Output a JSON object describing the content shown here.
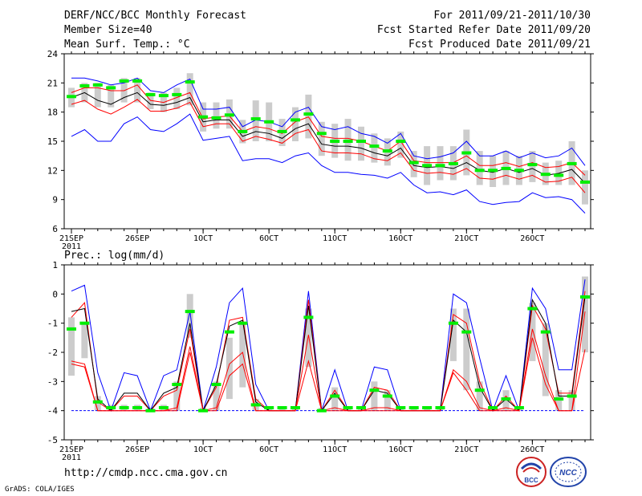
{
  "header": {
    "title": "DERF/NCC/BCC Monthly Forecast",
    "member_size": "Member Size=40",
    "variable": "Mean Surf. Temp.: °C",
    "forecast_period": "For 2011/09/21-2011/10/30",
    "started_refer": "Fcst Started Refer Date 2011/09/20",
    "produced": "Fcst Produced Date 2011/09/21"
  },
  "footer": {
    "url": "http://cmdp.ncc.cma.gov.cn",
    "grads": "GrADS: COLA/IGES",
    "logo1_text": "BCC",
    "logo2_text": "NCC"
  },
  "colors": {
    "box": "#cccccc",
    "median": "#00ee00",
    "mean": "#000000",
    "ci_inner": "#ff0000",
    "ci_outer": "#0000ff",
    "axis": "#000000"
  },
  "chart_data": [
    {
      "type": "box-line",
      "title": "Mean Surf. Temp.: °C",
      "ylim": [
        6,
        24
      ],
      "yticks": [
        6,
        9,
        12,
        15,
        18,
        21,
        24
      ],
      "xticks": [
        {
          "day": 0,
          "label": "21SEP",
          "sublabel": "2011"
        },
        {
          "day": 5,
          "label": "26SEP"
        },
        {
          "day": 10,
          "label": "1OCT"
        },
        {
          "day": 15,
          "label": "6OCT"
        },
        {
          "day": 20,
          "label": "11OCT"
        },
        {
          "day": 25,
          "label": "16OCT"
        },
        {
          "day": 30,
          "label": "21OCT"
        },
        {
          "day": 35,
          "label": "26OCT"
        }
      ],
      "days": 40,
      "series": [
        {
          "name": "upper-blue",
          "values": [
            21.5,
            21.5,
            21.2,
            20.8,
            21.0,
            21.5,
            20.2,
            20.0,
            20.8,
            21.4,
            18.3,
            18.3,
            18.5,
            16.5,
            17.2,
            17.0,
            16.5,
            18.0,
            18.5,
            16.5,
            16.2,
            16.5,
            15.8,
            15.5,
            14.8,
            15.8,
            13.5,
            13.2,
            13.4,
            13.8,
            15.0,
            13.5,
            13.5,
            14.0,
            13.3,
            13.8,
            13.3,
            13.5,
            14.3,
            12.5
          ]
        },
        {
          "name": "upper-red",
          "values": [
            20.0,
            20.5,
            20.5,
            20.2,
            20.2,
            20.8,
            19.2,
            19.0,
            19.5,
            20.0,
            17.3,
            17.5,
            17.6,
            16.0,
            16.5,
            16.3,
            15.8,
            17.0,
            17.5,
            15.5,
            15.3,
            15.3,
            15.0,
            14.5,
            14.0,
            15.0,
            13.0,
            12.8,
            12.8,
            12.8,
            13.5,
            12.5,
            12.5,
            12.8,
            12.4,
            12.8,
            12.3,
            12.4,
            12.8,
            11.5
          ]
        },
        {
          "name": "mean",
          "values": [
            19.5,
            20.0,
            19.2,
            18.8,
            19.5,
            20.0,
            18.8,
            18.7,
            19.0,
            19.5,
            17.0,
            17.2,
            17.2,
            15.5,
            16.0,
            15.8,
            15.3,
            16.3,
            16.8,
            14.7,
            14.5,
            14.5,
            14.3,
            13.8,
            13.5,
            14.3,
            12.5,
            12.3,
            12.4,
            12.2,
            12.8,
            12.0,
            11.8,
            12.2,
            11.8,
            12.2,
            11.5,
            11.7,
            12.1,
            10.7
          ]
        },
        {
          "name": "lower-red",
          "values": [
            18.8,
            19.2,
            18.3,
            17.8,
            18.5,
            19.3,
            18.1,
            18.1,
            18.4,
            19.0,
            16.5,
            16.8,
            16.8,
            15.0,
            15.5,
            15.2,
            14.8,
            15.8,
            16.2,
            14.0,
            13.8,
            13.8,
            13.7,
            13.2,
            13.0,
            13.8,
            12.0,
            11.7,
            11.8,
            11.6,
            12.2,
            11.2,
            11.1,
            11.5,
            11.1,
            11.5,
            10.8,
            10.9,
            11.3,
            9.7
          ]
        },
        {
          "name": "lower-blue",
          "values": [
            15.5,
            16.2,
            15.0,
            15.0,
            16.8,
            17.5,
            16.2,
            16.0,
            16.8,
            17.8,
            15.1,
            15.3,
            15.5,
            13.0,
            13.2,
            13.2,
            12.8,
            13.5,
            13.8,
            12.5,
            11.8,
            11.8,
            11.6,
            11.5,
            11.2,
            11.8,
            10.5,
            9.7,
            9.8,
            9.5,
            10.0,
            8.8,
            8.5,
            8.7,
            8.8,
            9.7,
            9.2,
            9.3,
            9.0,
            7.6
          ]
        }
      ],
      "boxes": [
        {
          "low": 18.5,
          "high": 20.5,
          "median": 19.6
        },
        {
          "low": 19.0,
          "high": 21.0,
          "median": 20.7
        },
        {
          "low": 18.5,
          "high": 21.0,
          "median": 20.8
        },
        {
          "low": 18.5,
          "high": 20.8,
          "median": 20.5
        },
        {
          "low": 19.0,
          "high": 21.5,
          "median": 21.2
        },
        {
          "low": 19.0,
          "high": 21.5,
          "median": 21.2
        },
        {
          "low": 18.3,
          "high": 20.0,
          "median": 19.8
        },
        {
          "low": 18.0,
          "high": 20.0,
          "median": 19.7
        },
        {
          "low": 18.3,
          "high": 20.5,
          "median": 19.8
        },
        {
          "low": 18.7,
          "high": 22.0,
          "median": 21.1
        },
        {
          "low": 16.0,
          "high": 19.0,
          "median": 17.5
        },
        {
          "low": 16.3,
          "high": 19.0,
          "median": 17.4
        },
        {
          "low": 16.3,
          "high": 19.3,
          "median": 17.7
        },
        {
          "low": 14.8,
          "high": 17.2,
          "median": 16.0
        },
        {
          "low": 15.0,
          "high": 19.2,
          "median": 17.3
        },
        {
          "low": 15.0,
          "high": 19.0,
          "median": 17.0
        },
        {
          "low": 14.5,
          "high": 17.3,
          "median": 16.0
        },
        {
          "low": 15.0,
          "high": 18.5,
          "median": 17.2
        },
        {
          "low": 15.3,
          "high": 19.8,
          "median": 17.8
        },
        {
          "low": 13.5,
          "high": 17.0,
          "median": 15.8
        },
        {
          "low": 13.3,
          "high": 16.8,
          "median": 15.0
        },
        {
          "low": 13.0,
          "high": 17.3,
          "median": 15.0
        },
        {
          "low": 13.0,
          "high": 16.5,
          "median": 15.0
        },
        {
          "low": 12.8,
          "high": 15.8,
          "median": 14.5
        },
        {
          "low": 12.5,
          "high": 15.3,
          "median": 14.0
        },
        {
          "low": 13.3,
          "high": 16.0,
          "median": 15.0
        },
        {
          "low": 11.3,
          "high": 14.0,
          "median": 12.8
        },
        {
          "low": 10.5,
          "high": 14.5,
          "median": 12.5
        },
        {
          "low": 11.0,
          "high": 14.5,
          "median": 12.5
        },
        {
          "low": 11.0,
          "high": 14.5,
          "median": 12.7
        },
        {
          "low": 11.5,
          "high": 16.2,
          "median": 13.8
        },
        {
          "low": 10.5,
          "high": 14.0,
          "median": 12.0
        },
        {
          "low": 10.3,
          "high": 13.5,
          "median": 12.0
        },
        {
          "low": 10.5,
          "high": 14.0,
          "median": 12.2
        },
        {
          "low": 10.5,
          "high": 13.5,
          "median": 12.0
        },
        {
          "low": 10.8,
          "high": 14.0,
          "median": 12.6
        },
        {
          "low": 10.5,
          "high": 12.8,
          "median": 11.6
        },
        {
          "low": 10.5,
          "high": 13.0,
          "median": 11.5
        },
        {
          "low": 10.5,
          "high": 15.0,
          "median": 12.7
        },
        {
          "low": 8.5,
          "high": 12.0,
          "median": 10.8
        }
      ]
    },
    {
      "type": "box-line",
      "title": "Prec.: log(mm/d)",
      "ylim": [
        -5,
        1
      ],
      "yticks": [
        -5,
        -4,
        -3,
        -2,
        -1,
        0,
        1
      ],
      "xticks": [
        {
          "day": 0,
          "label": "21SEP",
          "sublabel": "2011"
        },
        {
          "day": 5,
          "label": "26SEP"
        },
        {
          "day": 10,
          "label": "1OCT"
        },
        {
          "day": 15,
          "label": "6OCT"
        },
        {
          "day": 20,
          "label": "11OCT"
        },
        {
          "day": 25,
          "label": "16OCT"
        },
        {
          "day": 30,
          "label": "21OCT"
        },
        {
          "day": 35,
          "label": "26OCT"
        }
      ],
      "days": 40,
      "baseline": -4,
      "series": [
        {
          "name": "upper-blue",
          "values": [
            0.1,
            0.3,
            -2.7,
            -4.0,
            -2.7,
            -2.8,
            -4.0,
            -2.8,
            -2.6,
            -0.6,
            -4.0,
            -2.5,
            -0.3,
            0.2,
            -3.1,
            -4.0,
            -4.0,
            -4.0,
            0.1,
            -4.0,
            -2.6,
            -4.0,
            -4.0,
            -2.5,
            -2.6,
            -4.0,
            -4.0,
            -4.0,
            -4.0,
            0.0,
            -0.3,
            -2.2,
            -4.0,
            -2.8,
            -4.0,
            0.2,
            -0.5,
            -2.6,
            -2.6,
            0.5
          ]
        },
        {
          "name": "upper-red",
          "values": [
            -0.8,
            -0.3,
            -3.7,
            -4.0,
            -3.5,
            -3.5,
            -4.0,
            -3.5,
            -3.3,
            -1.2,
            -4.0,
            -3.2,
            -0.9,
            -0.8,
            -3.6,
            -4.0,
            -4.0,
            -4.0,
            -0.2,
            -4.0,
            -3.3,
            -4.0,
            -4.0,
            -3.2,
            -3.3,
            -4.0,
            -4.0,
            -4.0,
            -4.0,
            -0.7,
            -1.0,
            -3.0,
            -4.0,
            -3.5,
            -4.0,
            -0.4,
            -1.2,
            -3.4,
            -3.4,
            0.1
          ]
        },
        {
          "name": "mean",
          "values": [
            -0.6,
            -0.5,
            -3.6,
            -4.0,
            -3.4,
            -3.4,
            -4.0,
            -3.4,
            -3.2,
            -1.0,
            -4.0,
            -3.1,
            -1.1,
            -0.9,
            -3.7,
            -4.0,
            -4.0,
            -4.0,
            -0.4,
            -4.0,
            -3.4,
            -4.0,
            -4.0,
            -3.3,
            -3.4,
            -4.0,
            -4.0,
            -4.0,
            -4.0,
            -0.9,
            -1.3,
            -3.2,
            -4.0,
            -3.6,
            -4.0,
            -0.2,
            -1.0,
            -3.5,
            -3.5,
            -0.1
          ]
        },
        {
          "name": "lower-red",
          "values": [
            -2.3,
            -2.4,
            -4.0,
            -4.0,
            -4.0,
            -4.0,
            -4.0,
            -4.0,
            -3.9,
            -1.8,
            -4.0,
            -3.9,
            -2.4,
            -2.0,
            -4.0,
            -4.0,
            -4.0,
            -4.0,
            -1.4,
            -4.0,
            -3.9,
            -4.0,
            -4.0,
            -3.9,
            -3.9,
            -4.0,
            -4.0,
            -4.0,
            -4.0,
            -2.6,
            -3.0,
            -3.9,
            -4.0,
            -3.9,
            -4.0,
            -1.2,
            -2.8,
            -4.0,
            -4.0,
            -0.6
          ]
        },
        {
          "name": "lower-bottom-red",
          "values": [
            -2.4,
            -2.5,
            -4.0,
            -4.0,
            -4.0,
            -4.0,
            -4.0,
            -4.0,
            -4.0,
            -2.0,
            -4.0,
            -4.0,
            -2.8,
            -2.4,
            -4.0,
            -4.0,
            -4.0,
            -4.0,
            -2.3,
            -4.0,
            -4.0,
            -4.0,
            -4.0,
            -4.0,
            -4.0,
            -4.0,
            -4.0,
            -4.0,
            -4.0,
            -2.7,
            -3.3,
            -4.0,
            -4.0,
            -4.0,
            -4.0,
            -1.5,
            -3.1,
            -4.0,
            -4.0,
            -1.9
          ]
        }
      ],
      "boxes": [
        {
          "low": -2.8,
          "high": -0.8,
          "median": -1.2
        },
        {
          "low": -2.2,
          "high": -1.0,
          "median": -1.0
        },
        {
          "low": -4.0,
          "high": -3.5,
          "median": -3.7
        },
        {
          "low": -4.0,
          "high": -3.8,
          "median": -3.9
        },
        {
          "low": -4.0,
          "high": -3.8,
          "median": -3.9
        },
        {
          "low": -4.0,
          "high": -3.8,
          "median": -3.9
        },
        {
          "low": -4.0,
          "high": -3.9,
          "median": -4.0
        },
        {
          "low": -4.0,
          "high": -3.8,
          "median": -3.9
        },
        {
          "low": -4.0,
          "high": -3.0,
          "median": -3.1
        },
        {
          "low": -1.5,
          "high": 0.0,
          "median": -0.6
        },
        {
          "low": -4.0,
          "high": -3.9,
          "median": -4.0
        },
        {
          "low": -4.0,
          "high": -3.0,
          "median": -3.1
        },
        {
          "low": -3.6,
          "high": -1.5,
          "median": -1.3
        },
        {
          "low": -3.2,
          "high": -1.0,
          "median": -1.0
        },
        {
          "low": -4.0,
          "high": -3.6,
          "median": -3.8
        },
        {
          "low": -4.0,
          "high": -3.9,
          "median": -3.9
        },
        {
          "low": -4.0,
          "high": -3.9,
          "median": -3.9
        },
        {
          "low": -4.0,
          "high": -3.9,
          "median": -3.9
        },
        {
          "low": -2.5,
          "high": -0.5,
          "median": -0.8
        },
        {
          "low": -4.0,
          "high": -3.9,
          "median": -4.0
        },
        {
          "low": -4.0,
          "high": -3.2,
          "median": -3.5
        },
        {
          "low": -4.0,
          "high": -3.9,
          "median": -3.9
        },
        {
          "low": -4.0,
          "high": -3.9,
          "median": -3.9
        },
        {
          "low": -4.0,
          "high": -3.0,
          "median": -3.3
        },
        {
          "low": -4.0,
          "high": -3.3,
          "median": -3.5
        },
        {
          "low": -4.0,
          "high": -3.9,
          "median": -3.9
        },
        {
          "low": -4.0,
          "high": -3.9,
          "median": -3.9
        },
        {
          "low": -4.0,
          "high": -3.9,
          "median": -3.9
        },
        {
          "low": -4.0,
          "high": -3.9,
          "median": -3.9
        },
        {
          "low": -2.3,
          "high": -0.5,
          "median": -1.0
        },
        {
          "low": -3.3,
          "high": -0.5,
          "median": -1.3
        },
        {
          "low": -4.0,
          "high": -3.0,
          "median": -3.3
        },
        {
          "low": -4.0,
          "high": -3.9,
          "median": -3.9
        },
        {
          "low": -4.0,
          "high": -3.3,
          "median": -3.6
        },
        {
          "low": -4.0,
          "high": -3.9,
          "median": -3.9
        },
        {
          "low": -2.3,
          "high": -0.3,
          "median": -0.5
        },
        {
          "low": -3.5,
          "high": -1.0,
          "median": -1.3
        },
        {
          "low": -4.0,
          "high": -3.3,
          "median": -3.6
        },
        {
          "low": -4.0,
          "high": -3.3,
          "median": -3.5
        },
        {
          "low": -2.0,
          "high": 0.6,
          "median": -0.1
        }
      ]
    }
  ]
}
